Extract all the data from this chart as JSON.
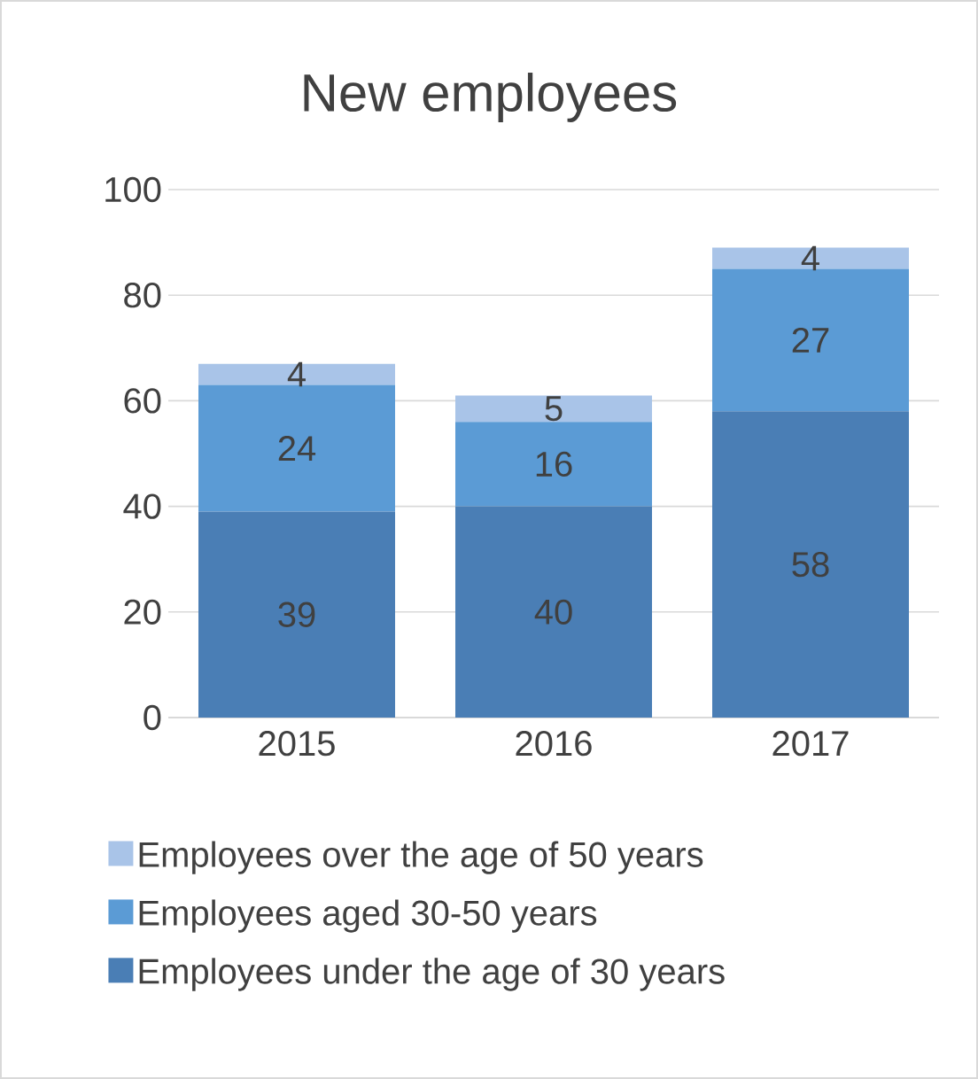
{
  "chart_data": {
    "type": "bar",
    "title": "New employees",
    "stacked": true,
    "categories": [
      "2015",
      "2016",
      "2017"
    ],
    "series": [
      {
        "name": "Employees under the age of 30 years",
        "color": "#4a7eb5",
        "values": [
          39,
          40,
          58
        ]
      },
      {
        "name": "Employees aged 30-50 years",
        "color": "#5b9bd5",
        "values": [
          24,
          16,
          27
        ]
      },
      {
        "name": "Employees over the age of 50 years",
        "color": "#a9c4e8",
        "values": [
          4,
          5,
          4
        ]
      }
    ],
    "ylim": [
      0,
      100
    ],
    "yticks": [
      0,
      20,
      40,
      60,
      80,
      100
    ],
    "grid": "y",
    "legend": "bottom",
    "data_labels": true
  }
}
